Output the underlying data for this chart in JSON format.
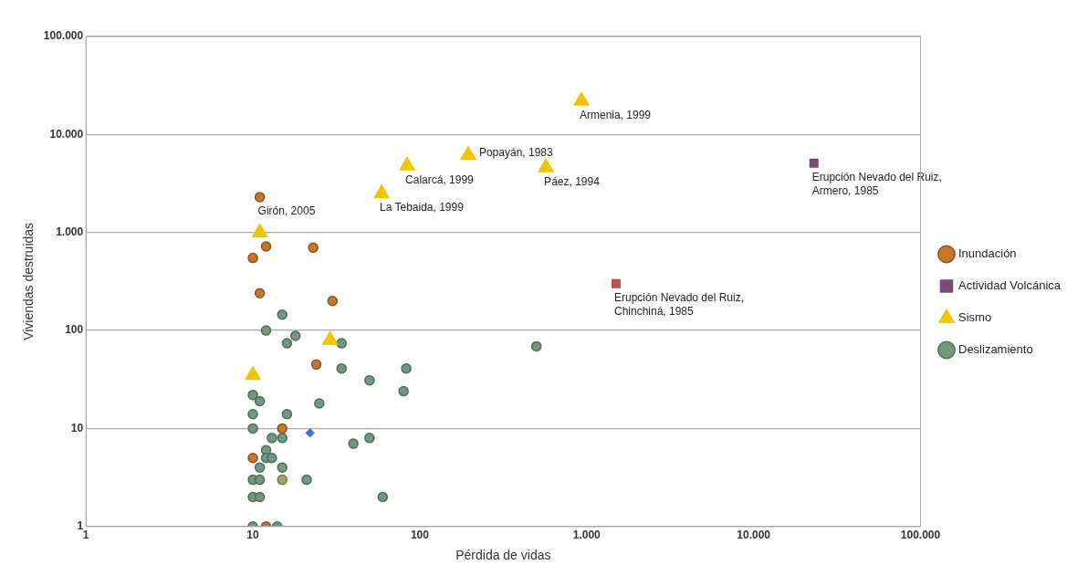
{
  "chart_data": {
    "type": "scatter",
    "xlabel": "Pérdida de vidas",
    "ylabel": "Viviendas destruidas",
    "log": "xy",
    "grid": "y",
    "legend": "right",
    "xlim": [
      1,
      100000
    ],
    "xticks": [
      1,
      10,
      100,
      {
        "value": 1000,
        "label": "1.000"
      },
      {
        "value": 10000,
        "label": "10.000"
      },
      {
        "value": 100000,
        "label": "100.000"
      }
    ],
    "ylim": [
      1,
      100000
    ],
    "yticks": [
      1,
      10,
      100,
      {
        "value": 1000,
        "label": "1.000"
      },
      {
        "value": 10000,
        "label": "10.000"
      },
      {
        "value": 100000,
        "label": "100.000"
      }
    ],
    "series": [
      {
        "name": "Inundación",
        "color": "#c8762a",
        "marker": "circle",
        "x": [
          11,
          12,
          10,
          23,
          11,
          30,
          24,
          15,
          10,
          12
        ],
        "values": [
          2300,
          720,
          550,
          700,
          240,
          200,
          45,
          10,
          5,
          1
        ]
      },
      {
        "name": "Actividad Volcánica",
        "color": "#7b4a78",
        "marker": "square",
        "x": [
          23000
        ],
        "values": [
          5100
        ]
      },
      {
        "name": "Sismo",
        "color": "#f2c500",
        "marker": "triangle",
        "x": [
          11,
          10,
          29,
          59,
          84,
          195,
          570,
          930
        ],
        "values": [
          1000,
          35,
          80,
          2500,
          4800,
          6200,
          4600,
          22000
        ]
      },
      {
        "name": "Deslizamiento",
        "color": "#6f9a80",
        "marker": "circle",
        "x": [
          15,
          12,
          16,
          18,
          34,
          34,
          50,
          83,
          80,
          25,
          10,
          11,
          10,
          16,
          10,
          13,
          15,
          40,
          50,
          12,
          12,
          13,
          11,
          15,
          10,
          11,
          21,
          10,
          11,
          60,
          10,
          14,
          500
        ],
        "values": [
          145,
          100,
          74,
          88,
          74,
          41,
          31,
          41,
          24,
          18,
          22,
          19,
          14,
          14,
          10,
          8,
          8,
          7,
          8,
          6,
          5,
          5,
          4,
          4,
          3,
          3,
          3,
          2,
          2,
          2,
          1,
          1,
          69
        ]
      },
      {
        "color": "#c0504d",
        "marker": "square",
        "x": [
          1500
        ],
        "values": [
          300
        ]
      },
      {
        "color": "#4472c4",
        "marker": "diamond",
        "x": [
          22
        ],
        "values": [
          9
        ]
      },
      {
        "color": "#a5a566",
        "marker": "circle",
        "x": [
          15
        ],
        "values": [
          3
        ]
      }
    ],
    "annotations": [
      {
        "text": "Girón, 2005",
        "x": 11,
        "y": 2300
      },
      {
        "text": "La Tebaida, 1999",
        "x": 59,
        "y": 2500
      },
      {
        "text": "Calarcá, 1999",
        "x": 84,
        "y": 4800
      },
      {
        "text": "Popayán, 1983",
        "x": 195,
        "y": 6200
      },
      {
        "text": "Páez, 1994",
        "x": 570,
        "y": 4600
      },
      {
        "text": "Armenia, 1999",
        "x": 930,
        "y": 22000
      },
      {
        "text": "Erupción Nevado del Ruiz,\nArmero, 1985",
        "x": 23000,
        "y": 5100
      },
      {
        "text": "Erupción Nevado del Ruiz,\nChinchiná, 1985",
        "x": 1500,
        "y": 300
      }
    ]
  }
}
